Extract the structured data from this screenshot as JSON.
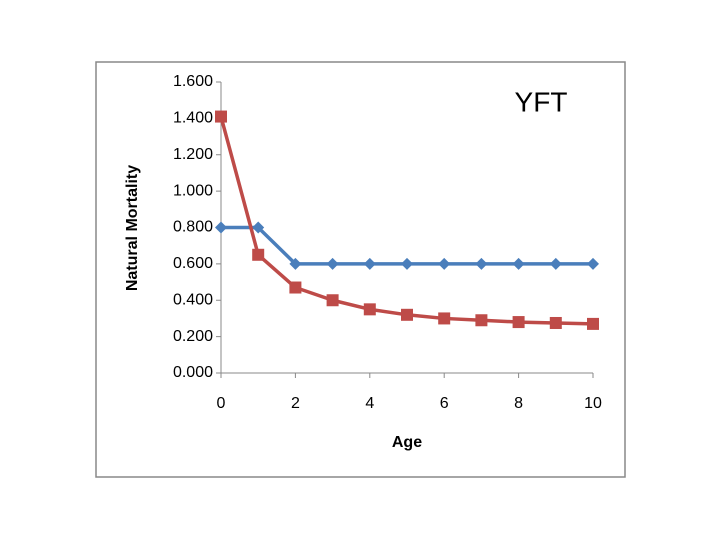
{
  "chart_data": {
    "type": "line",
    "annotation": "YFT",
    "y_label": "Natural Mortality",
    "x_label": "Age",
    "x": [
      0,
      1,
      2,
      3,
      4,
      5,
      6,
      7,
      8,
      9,
      10
    ],
    "series": [
      {
        "color": "#4a7ebb",
        "marker": "diamond",
        "values": [
          0.8,
          0.8,
          0.6,
          0.6,
          0.6,
          0.6,
          0.6,
          0.6,
          0.6,
          0.6,
          0.6
        ]
      },
      {
        "color": "#be4b48",
        "marker": "square",
        "values": [
          1.41,
          0.65,
          0.47,
          0.4,
          0.35,
          0.32,
          0.3,
          0.29,
          0.28,
          0.275,
          0.27
        ]
      }
    ],
    "xlim": [
      0,
      10
    ],
    "xticks": [
      0,
      2,
      4,
      6,
      8,
      10
    ],
    "ylim": [
      0,
      1.6
    ],
    "yticks": [
      {
        "value": 0,
        "label": "0.000"
      },
      {
        "value": 0.2,
        "label": "0.200"
      },
      {
        "value": 0.4,
        "label": "0.400"
      },
      {
        "value": 0.6,
        "label": "0.600"
      },
      {
        "value": 0.8,
        "label": "0.800"
      },
      {
        "value": 1.0,
        "label": "1.000"
      },
      {
        "value": 1.2,
        "label": "1.200"
      },
      {
        "value": 1.4,
        "label": "1.400"
      },
      {
        "value": 1.6,
        "label": "1.600"
      }
    ],
    "grid": false
  }
}
